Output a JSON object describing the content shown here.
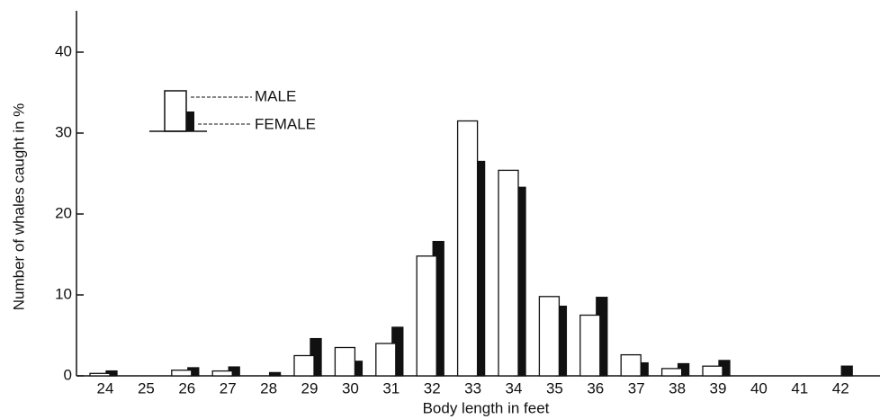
{
  "chart_data": {
    "type": "bar",
    "x_label": "Body length in feet",
    "y_label": "Number of whales caught in %",
    "categories": [
      "24",
      "25",
      "26",
      "27",
      "28",
      "29",
      "30",
      "31",
      "32",
      "33",
      "34",
      "35",
      "36",
      "37",
      "38",
      "39",
      "40",
      "41",
      "42"
    ],
    "series": [
      {
        "name": "MALE",
        "color": "#ffffff",
        "values": [
          0.3,
          0,
          0.7,
          0.6,
          0,
          2.5,
          3.5,
          4.0,
          14.8,
          31.5,
          25.4,
          9.8,
          7.5,
          2.6,
          0.9,
          1.2,
          0,
          0,
          0
        ]
      },
      {
        "name": "FEMALE",
        "color": "#111111",
        "values": [
          0.6,
          0,
          1.0,
          1.1,
          0.4,
          4.6,
          1.8,
          6.0,
          16.6,
          26.5,
          23.3,
          8.6,
          9.7,
          1.6,
          1.5,
          1.9,
          0,
          0,
          1.2
        ]
      }
    ],
    "ylim": [
      0,
      45
    ],
    "yticks": [
      0,
      10,
      20,
      30,
      40
    ]
  }
}
